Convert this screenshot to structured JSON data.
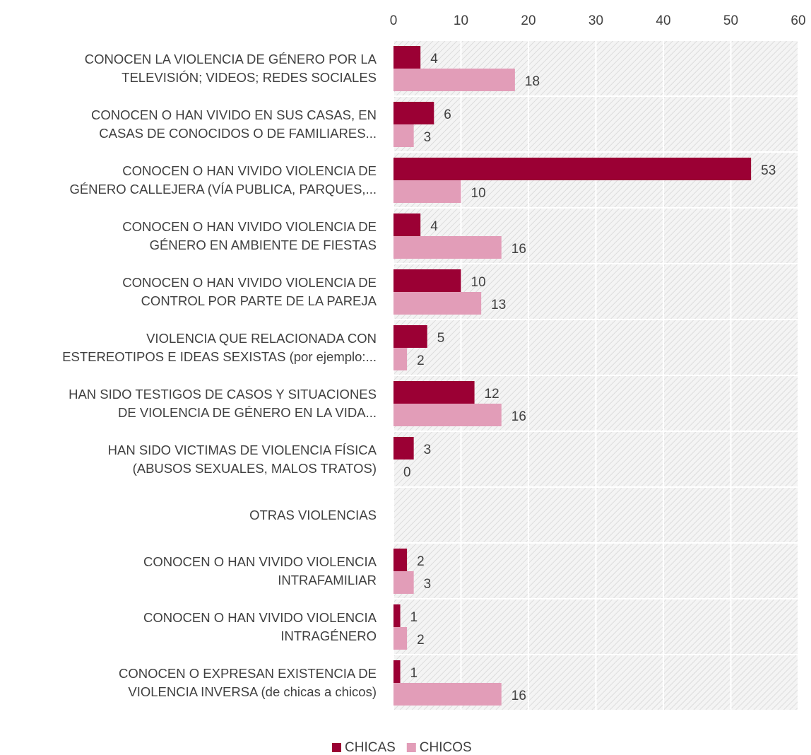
{
  "chart_data": {
    "type": "hbar",
    "categories": [
      "CONOCEN LA VIOLENCIA DE GÉNERO POR LA\nTELEVISIÓN; VIDEOS; REDES SOCIALES",
      "CONOCEN O HAN VIVIDO EN SUS CASAS, EN\nCASAS DE CONOCIDOS O DE FAMILIARES...",
      "CONOCEN O HAN VIVIDO VIOLENCIA DE\nGÉNERO CALLEJERA (VÍA PUBLICA, PARQUES,...",
      "CONOCEN O HAN VIVIDO VIOLENCIA DE\nGÉNERO EN AMBIENTE DE FIESTAS",
      "CONOCEN O HAN VIVIDO VIOLENCIA DE\nCONTROL POR PARTE DE LA PAREJA",
      "VIOLENCIA QUE RELACIONADA CON\nESTEREOTIPOS E IDEAS SEXISTAS (por ejemplo:...",
      "HAN SIDO TESTIGOS DE CASOS Y SITUACIONES\nDE VIOLENCIA DE GÉNERO EN LA VIDA...",
      "HAN SIDO VICTIMAS DE VIOLENCIA FÍSICA\n(ABUSOS SEXUALES, MALOS TRATOS)",
      "OTRAS VIOLENCIAS",
      "CONOCEN O HAN VIVIDO VIOLENCIA\nINTRAFAMILIAR",
      "CONOCEN O HAN VIVIDO VIOLENCIA\nINTRAGÉNERO",
      "CONOCEN O EXPRESAN EXISTENCIA DE\nVIOLENCIA INVERSA (de chicas a chicos)"
    ],
    "series": [
      {
        "name": "CHICAS",
        "color": "#9b0034",
        "values": [
          4,
          6,
          53,
          4,
          10,
          5,
          12,
          3,
          null,
          2,
          1,
          1
        ]
      },
      {
        "name": "CHICOS",
        "color": "#e29db8",
        "values": [
          18,
          3,
          10,
          16,
          13,
          2,
          16,
          0,
          null,
          3,
          2,
          16
        ]
      }
    ],
    "xlim": [
      0,
      60
    ],
    "xticks": [
      0,
      10,
      20,
      30,
      40,
      50,
      60
    ],
    "grid": true,
    "legend": "bottom"
  }
}
